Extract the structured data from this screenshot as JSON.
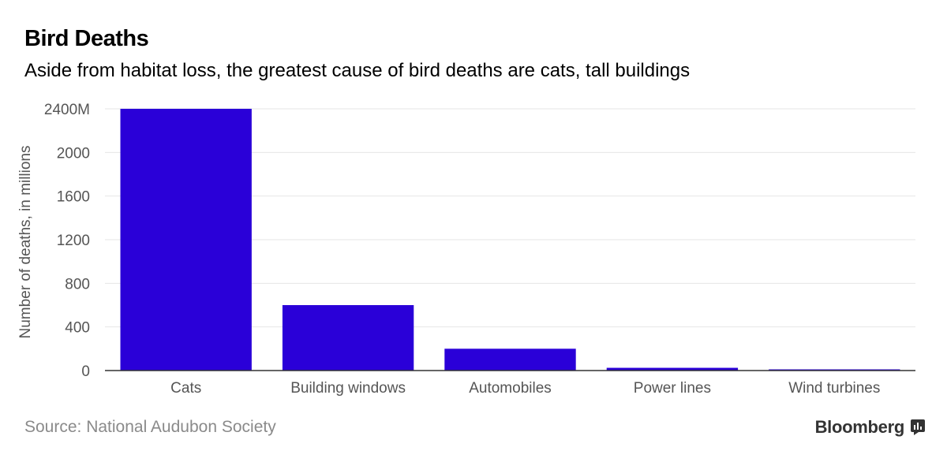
{
  "header": {
    "title": "Bird Deaths",
    "subtitle": "Aside from habitat loss, the greatest cause of bird deaths are cats, tall buildings"
  },
  "footer": {
    "source": "Source: National Audubon Society",
    "brand": "Bloomberg"
  },
  "colors": {
    "bar": "#2a00d8",
    "grid": "#e6e6e6",
    "axis": "#333333",
    "tick_text": "#555555"
  },
  "chart_data": {
    "type": "bar",
    "title": "Bird Deaths",
    "subtitle": "Aside from habitat loss, the greatest cause of bird deaths are cats, tall buildings",
    "categories": [
      "Cats",
      "Building windows",
      "Automobiles",
      "Power lines",
      "Wind turbines"
    ],
    "values": [
      2400,
      600,
      200,
      25,
      0.3
    ],
    "ylabel": "Number of deaths, in millions",
    "xlabel": "",
    "ylim": [
      0,
      2400
    ],
    "yticks": [
      0,
      400,
      800,
      1200,
      1600,
      2000,
      2400
    ],
    "ytick_labels": [
      "0",
      "400",
      "800",
      "1200",
      "1600",
      "2000",
      "2400M"
    ],
    "grid": true,
    "legend": "none"
  }
}
